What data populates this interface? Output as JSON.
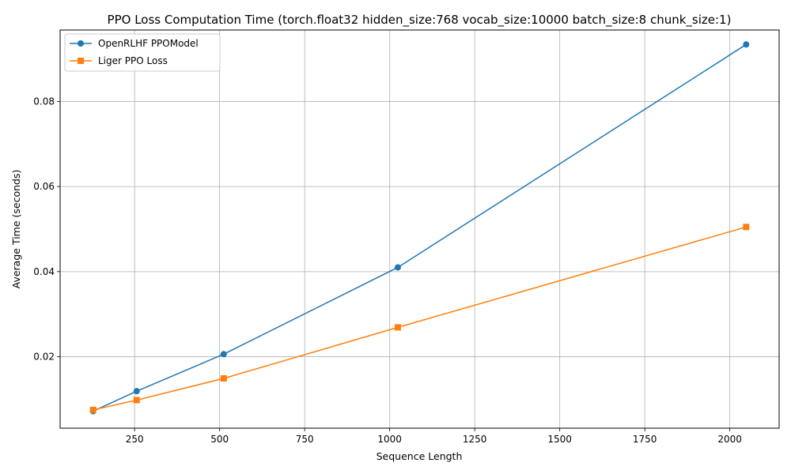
{
  "chart_data": {
    "type": "line",
    "title": "PPO Loss Computation Time (torch.float32 hidden_size:768 vocab_size:10000 batch_size:8 chunk_size:1)",
    "xlabel": "Sequence Length",
    "ylabel": "Average Time (seconds)",
    "xlim": [
      31,
      2145
    ],
    "ylim": [
      0.0032,
      0.0968
    ],
    "xticks": [
      250,
      500,
      750,
      1000,
      1250,
      1500,
      1750,
      2000
    ],
    "yticks": [
      0.02,
      0.04,
      0.06,
      0.08
    ],
    "xtick_labels": [
      "250",
      "500",
      "750",
      "1000",
      "1250",
      "1500",
      "1750",
      "2000"
    ],
    "ytick_labels": [
      "0.02",
      "0.04",
      "0.06",
      "0.08"
    ],
    "grid": true,
    "legend_position": "top-left",
    "x": [
      128,
      256,
      512,
      1024,
      2048
    ],
    "series": [
      {
        "name": "OpenRLHF PPOModel",
        "color": "#1f77b4",
        "marker": "circle",
        "values": [
          0.0072,
          0.0119,
          0.0206,
          0.041,
          0.0934
        ]
      },
      {
        "name": "Liger PPO Loss",
        "color": "#ff7f0e",
        "marker": "square",
        "values": [
          0.0075,
          0.0098,
          0.0149,
          0.0269,
          0.0505
        ]
      }
    ]
  }
}
